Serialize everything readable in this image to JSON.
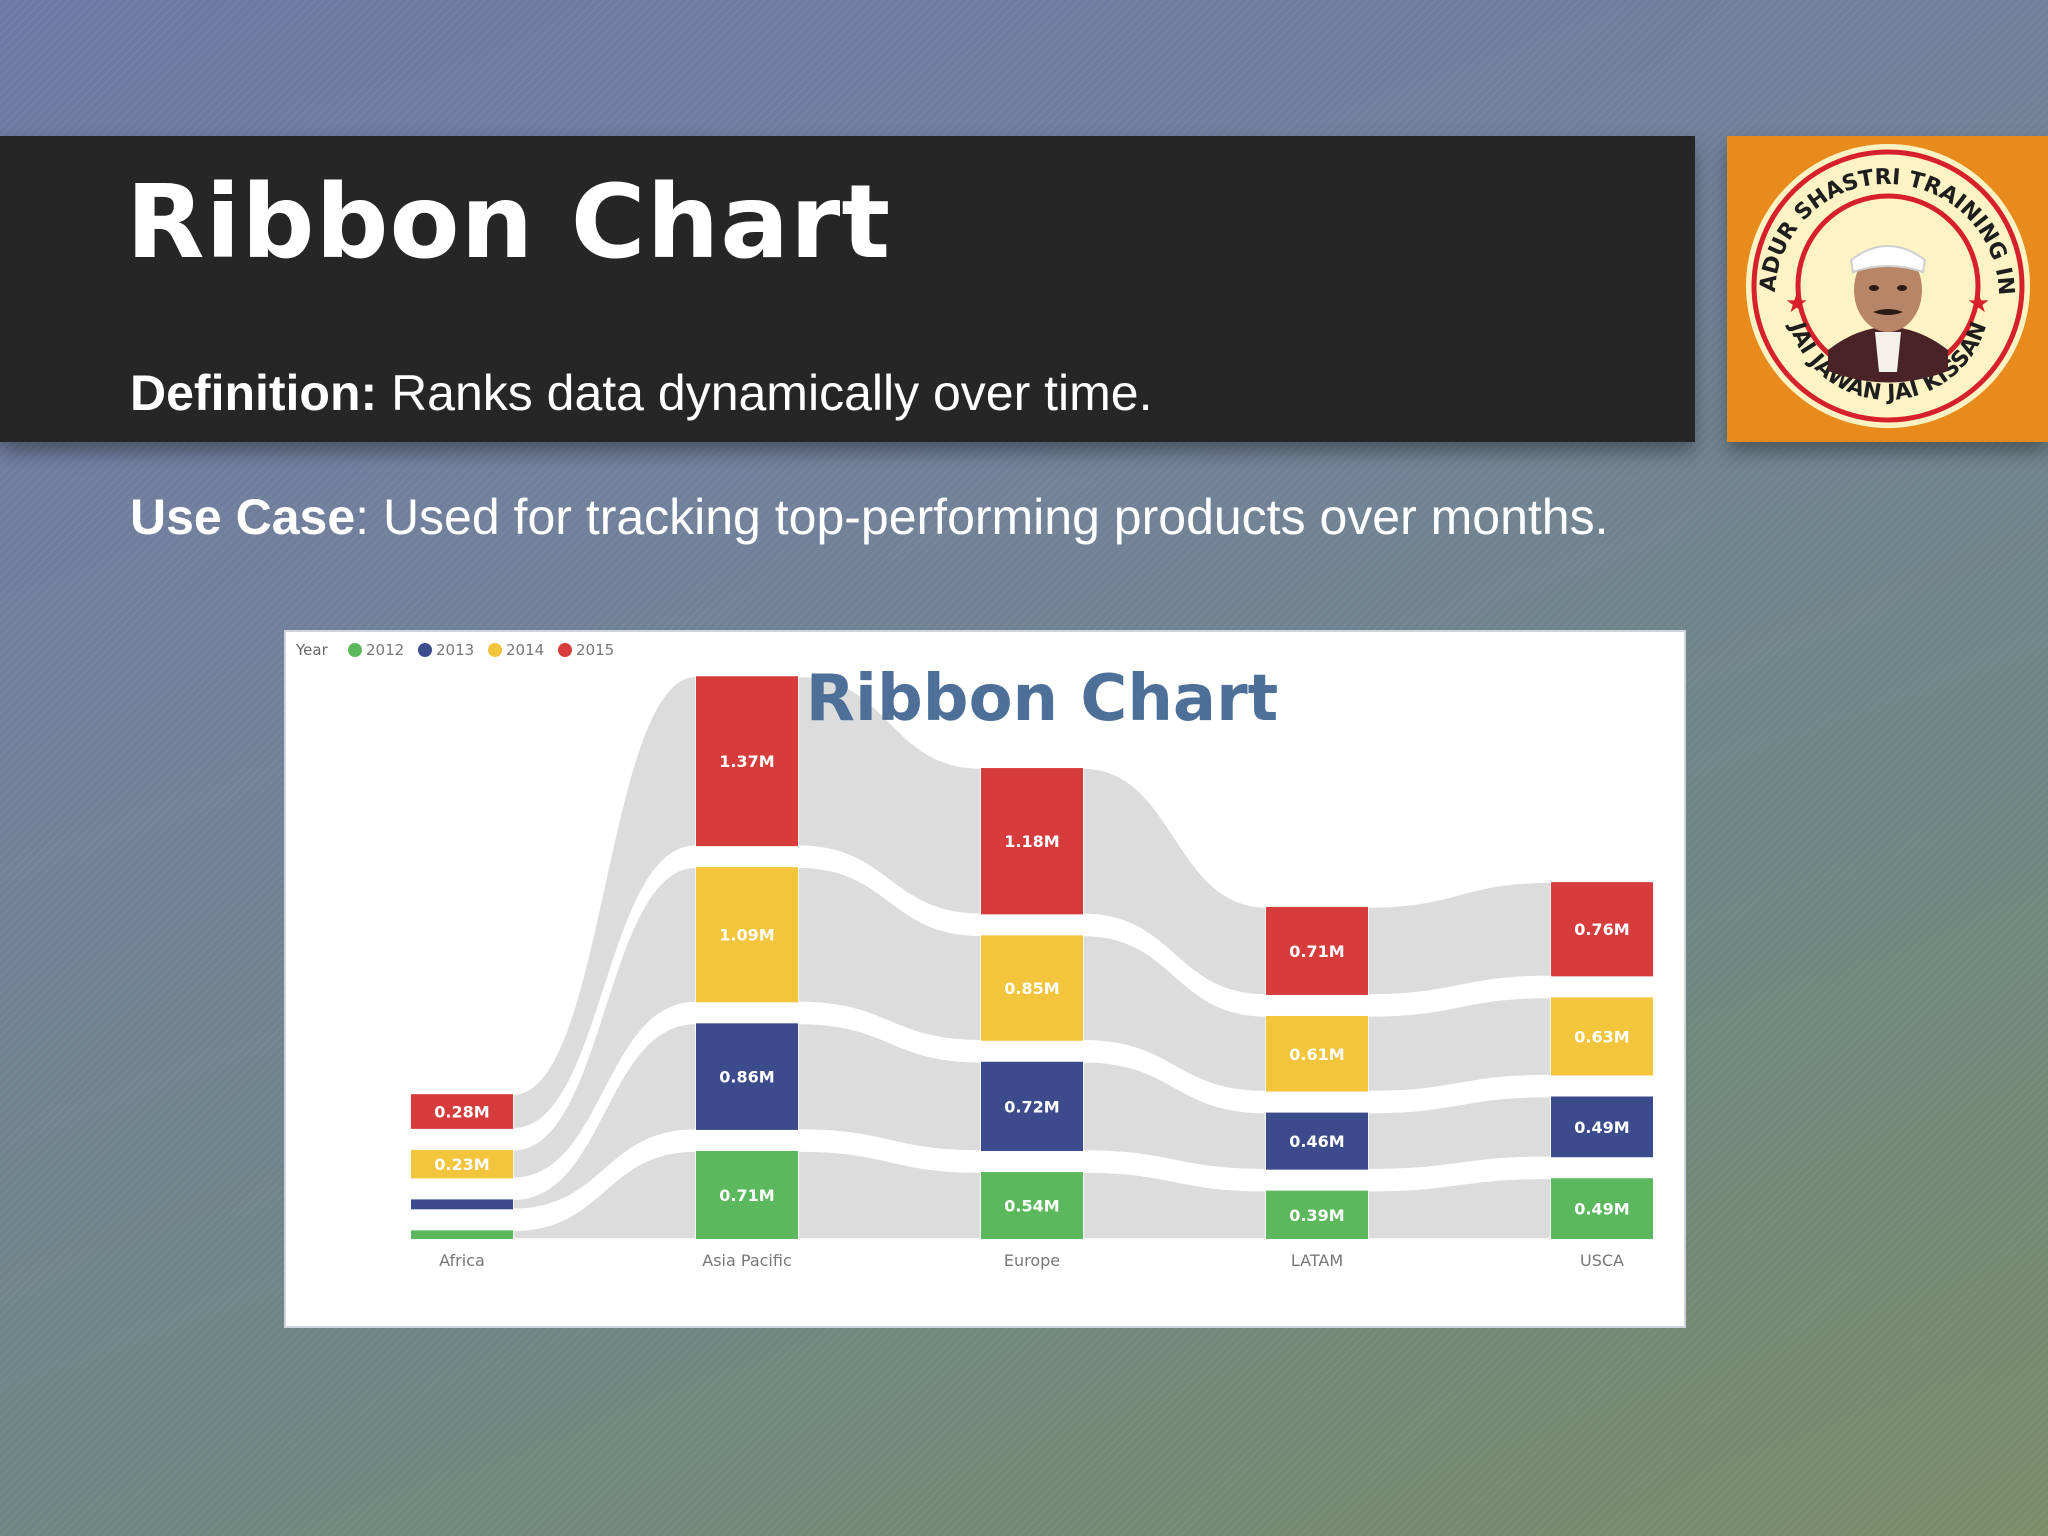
{
  "slide": {
    "title": "Ribbon Chart",
    "definition_label": "Definition:",
    "definition_text": " Ranks data dynamically over time.",
    "usecase_label": "Use Case",
    "usecase_text": ": Used for tracking top-performing products over months."
  },
  "logo": {
    "ring_text_top": "LAL BAHADUR SHASTRI TRAINING INSTITUTE",
    "ring_text_bottom": "JAI JAWAN JAI KISSAN",
    "colors": {
      "background": "#e98a1d",
      "ring": "#d6212a",
      "inner": "#fdf3c4"
    }
  },
  "chart_data": {
    "type": "ribbon",
    "title": "Ribbon Chart",
    "legend_title": "Year",
    "legend_position": "top-left",
    "categories": [
      "Africa",
      "Asia Pacific",
      "Europe",
      "LATAM",
      "USCA"
    ],
    "series": [
      {
        "name": "2012",
        "color": "#5cb85c",
        "values": [
          0.07,
          0.71,
          0.54,
          0.39,
          0.49
        ],
        "labels": [
          "",
          "0.71M",
          "0.54M",
          "0.39M",
          "0.49M"
        ]
      },
      {
        "name": "2013",
        "color": "#3c4b8c",
        "values": [
          0.08,
          0.86,
          0.72,
          0.46,
          0.49
        ],
        "labels": [
          "",
          "0.86M",
          "0.72M",
          "0.46M",
          "0.49M"
        ]
      },
      {
        "name": "2014",
        "color": "#f2c53d",
        "values": [
          0.23,
          1.09,
          0.85,
          0.61,
          0.63
        ],
        "labels": [
          "0.23M",
          "1.09M",
          "0.85M",
          "0.61M",
          "0.63M"
        ]
      },
      {
        "name": "2015",
        "color": "#d63c3c",
        "values": [
          0.28,
          1.37,
          1.18,
          0.71,
          0.76
        ],
        "labels": [
          "0.28M",
          "1.37M",
          "1.18M",
          "0.71M",
          "0.76M"
        ]
      }
    ]
  }
}
